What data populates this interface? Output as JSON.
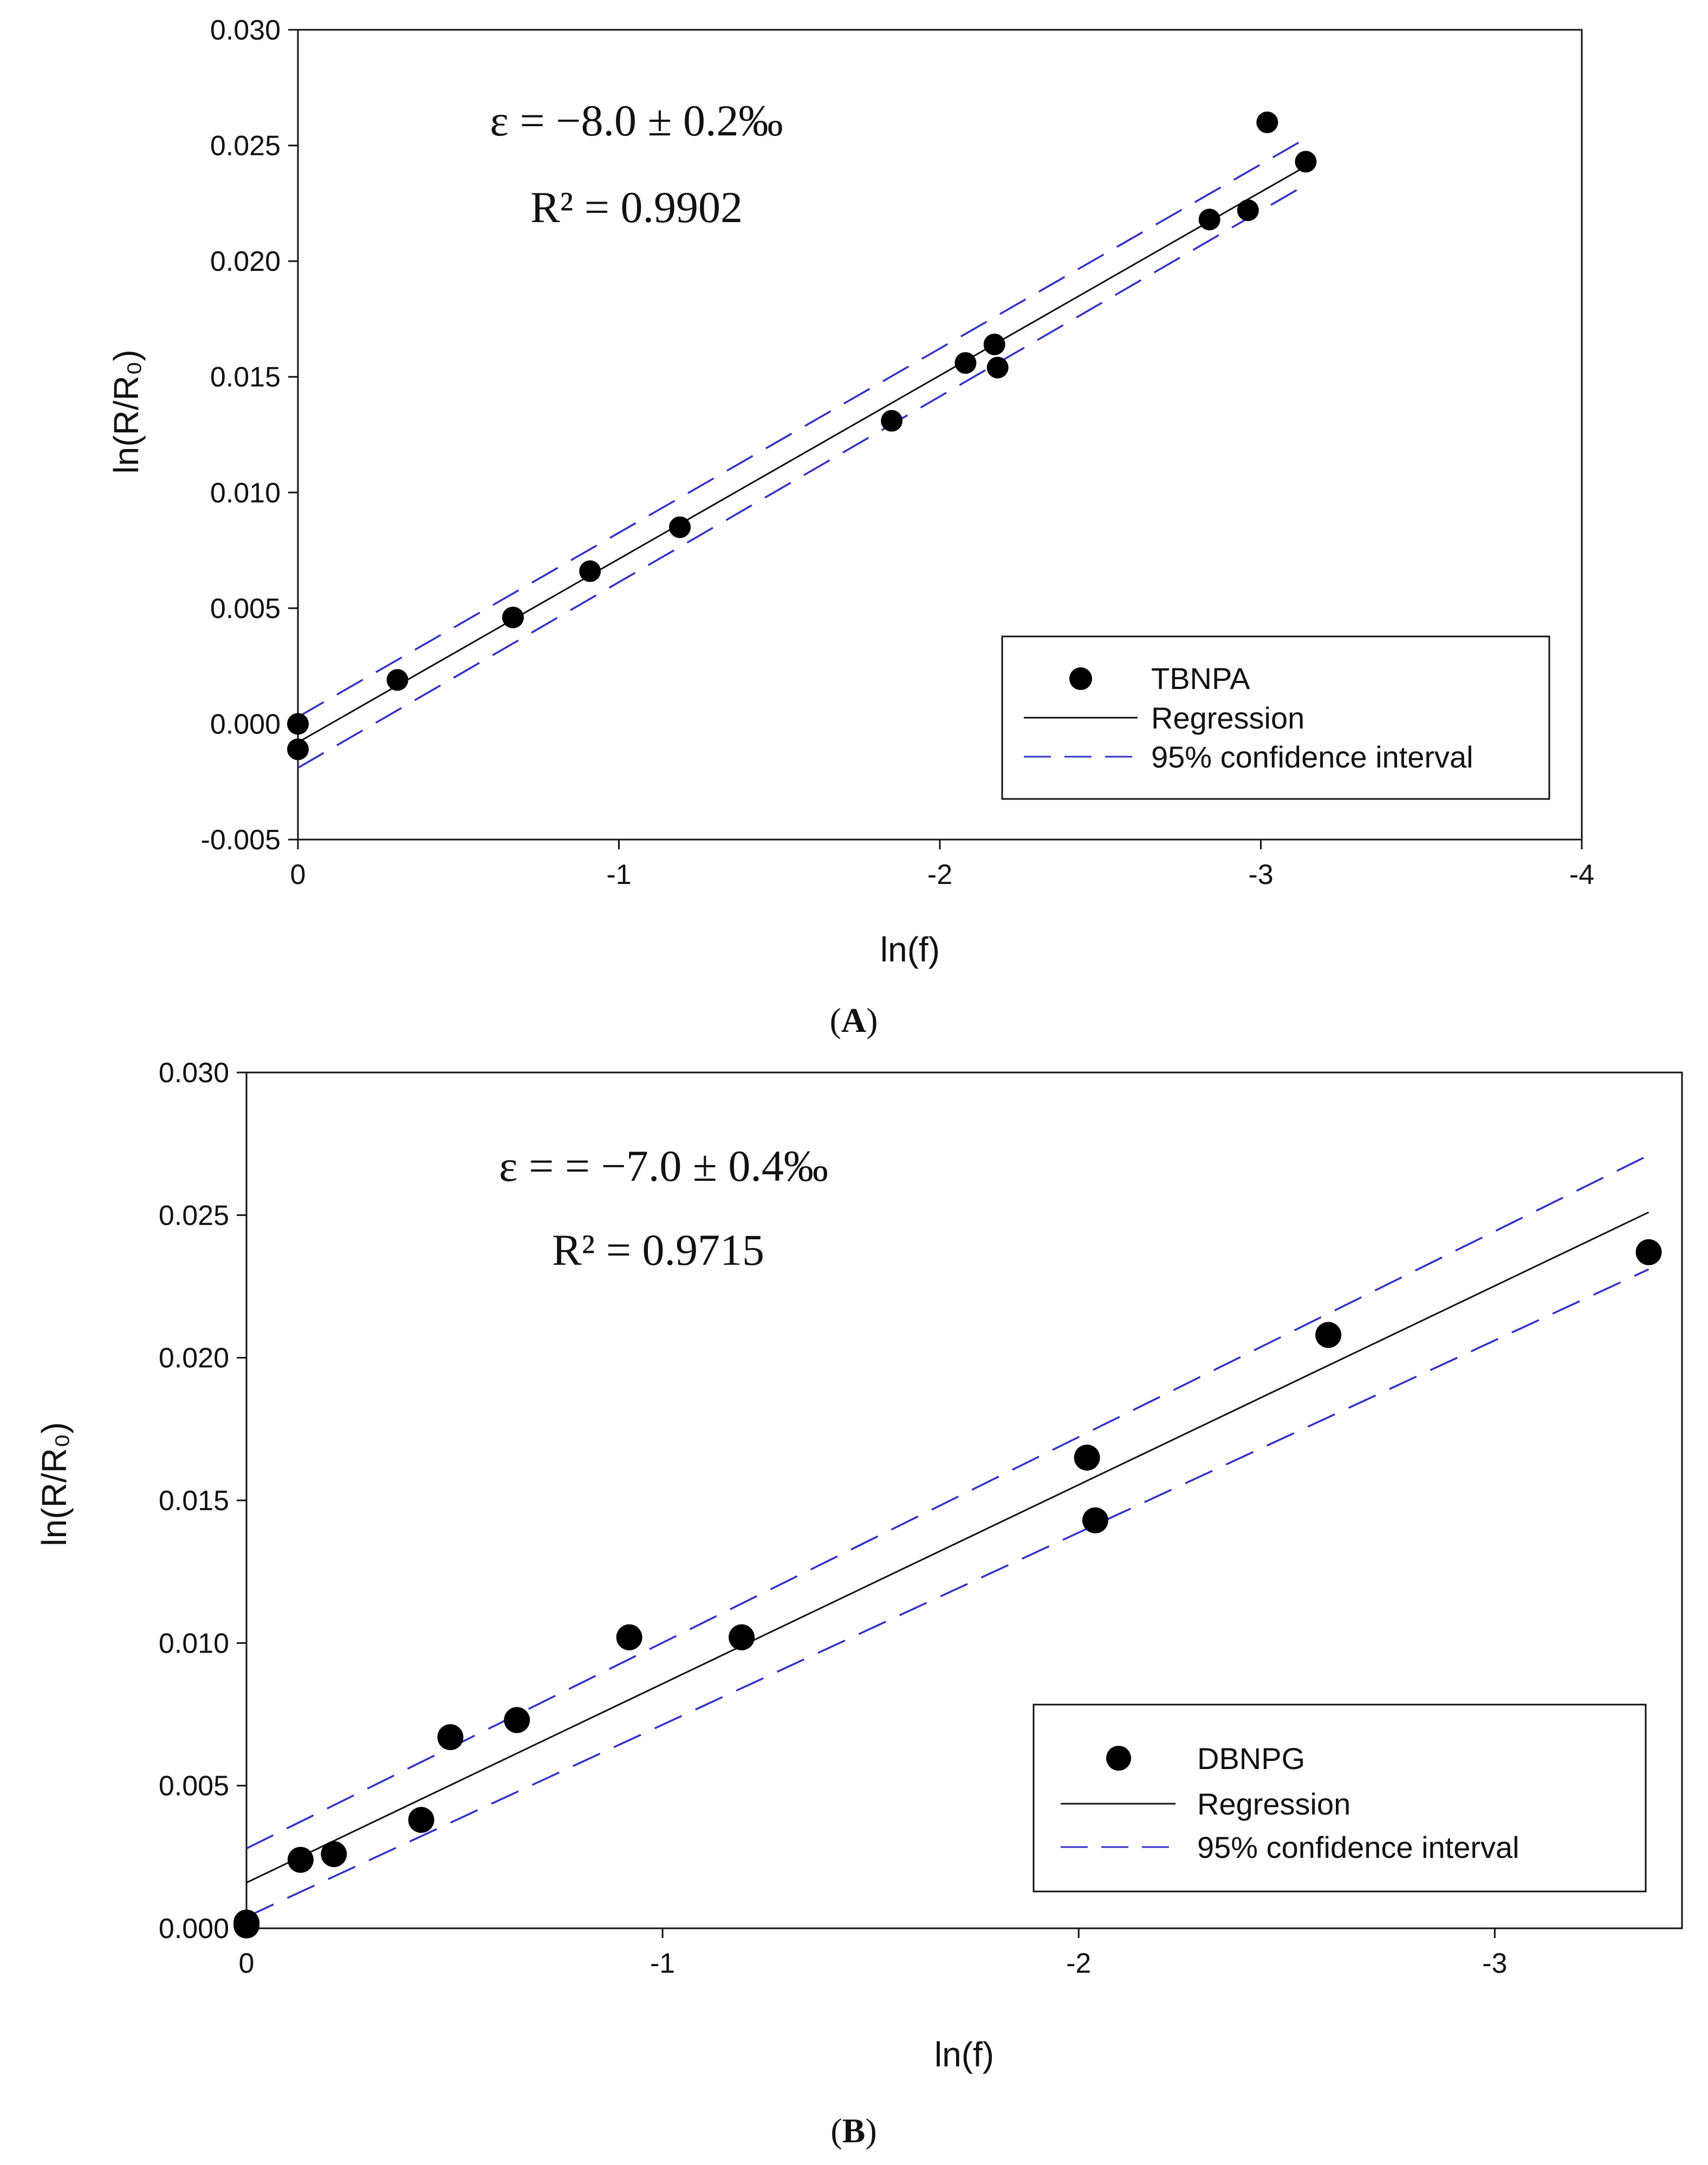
{
  "chart_data": [
    {
      "type": "scatter",
      "panel": "A",
      "caption_letter": "A",
      "xlabel": "ln(f)",
      "ylabel": "ln(R/R₀)",
      "xlim": [
        0,
        -4
      ],
      "ylim": [
        -0.005,
        0.03
      ],
      "xticks": [
        "0",
        "-1",
        "-2",
        "-3",
        "-4"
      ],
      "yticks": [
        "-0.005",
        "0.000",
        "0.005",
        "0.010",
        "0.015",
        "0.020",
        "0.025",
        "0.030"
      ],
      "annotation_line1": "ε = −8.0 ± 0.2‰",
      "annotation_line2": "R² = 0.9902",
      "legend": {
        "series": "TBNPA",
        "regression": "Regression",
        "ci": "95% confidence interval",
        "position": "bottom-right"
      },
      "points": [
        [
          0,
          0.0
        ],
        [
          0,
          -0.0011
        ],
        [
          -0.31,
          0.0019
        ],
        [
          -0.67,
          0.0046
        ],
        [
          -0.91,
          0.0066
        ],
        [
          -1.19,
          0.0085
        ],
        [
          -1.85,
          0.0131
        ],
        [
          -2.08,
          0.0156
        ],
        [
          -2.17,
          0.0164
        ],
        [
          -2.18,
          0.0154
        ],
        [
          -2.84,
          0.0218
        ],
        [
          -2.96,
          0.0222
        ],
        [
          -3.02,
          0.026
        ],
        [
          -3.14,
          0.0243
        ]
      ],
      "regression": {
        "x": [
          0,
          -3.14
        ],
        "y": [
          -0.0008,
          0.0241
        ]
      },
      "ci_upper": {
        "x": [
          0,
          -3.14
        ],
        "y": [
          0.0003,
          0.0253
        ]
      },
      "ci_lower": {
        "x": [
          0,
          -3.14
        ],
        "y": [
          -0.0019,
          0.0233
        ]
      }
    },
    {
      "type": "scatter",
      "panel": "B",
      "caption_letter": "B",
      "xlabel": "ln(f)",
      "ylabel": "ln(R/R₀)",
      "xlim": [
        0,
        -3.45
      ],
      "ylim": [
        0.0,
        0.03
      ],
      "xticks": [
        "0",
        "-1",
        "-2",
        "-3"
      ],
      "yticks": [
        "0.000",
        "0.005",
        "0.010",
        "0.015",
        "0.020",
        "0.025",
        "0.030"
      ],
      "annotation_line1": "ε = = −7.0 ± 0.4‰",
      "annotation_line2": "R²  = 0.9715",
      "legend": {
        "series": "DBNPG",
        "regression": "Regression",
        "ci": "95% confidence interval",
        "position": "bottom-right"
      },
      "points": [
        [
          0,
          0.0002
        ],
        [
          0,
          0.0001
        ],
        [
          -0.13,
          0.0024
        ],
        [
          -0.21,
          0.0026
        ],
        [
          -0.42,
          0.0038
        ],
        [
          -0.49,
          0.0067
        ],
        [
          -0.65,
          0.0073
        ],
        [
          -0.92,
          0.0102
        ],
        [
          -1.19,
          0.0102
        ],
        [
          -2.02,
          0.0165
        ],
        [
          -2.04,
          0.0143
        ],
        [
          -2.6,
          0.0208
        ],
        [
          -3.37,
          0.0237
        ]
      ],
      "regression": {
        "x": [
          0,
          -3.37
        ],
        "y": [
          0.0016,
          0.0251
        ]
      },
      "ci_upper": {
        "x": [
          0,
          -3.37
        ],
        "y": [
          0.0028,
          0.0271
        ]
      },
      "ci_lower": {
        "x": [
          0,
          -3.37
        ],
        "y": [
          0.0004,
          0.0231
        ]
      }
    }
  ],
  "colors": {
    "axis": "#111111",
    "regression": "#111111",
    "ci": "#3030c8",
    "points": "#000000"
  }
}
